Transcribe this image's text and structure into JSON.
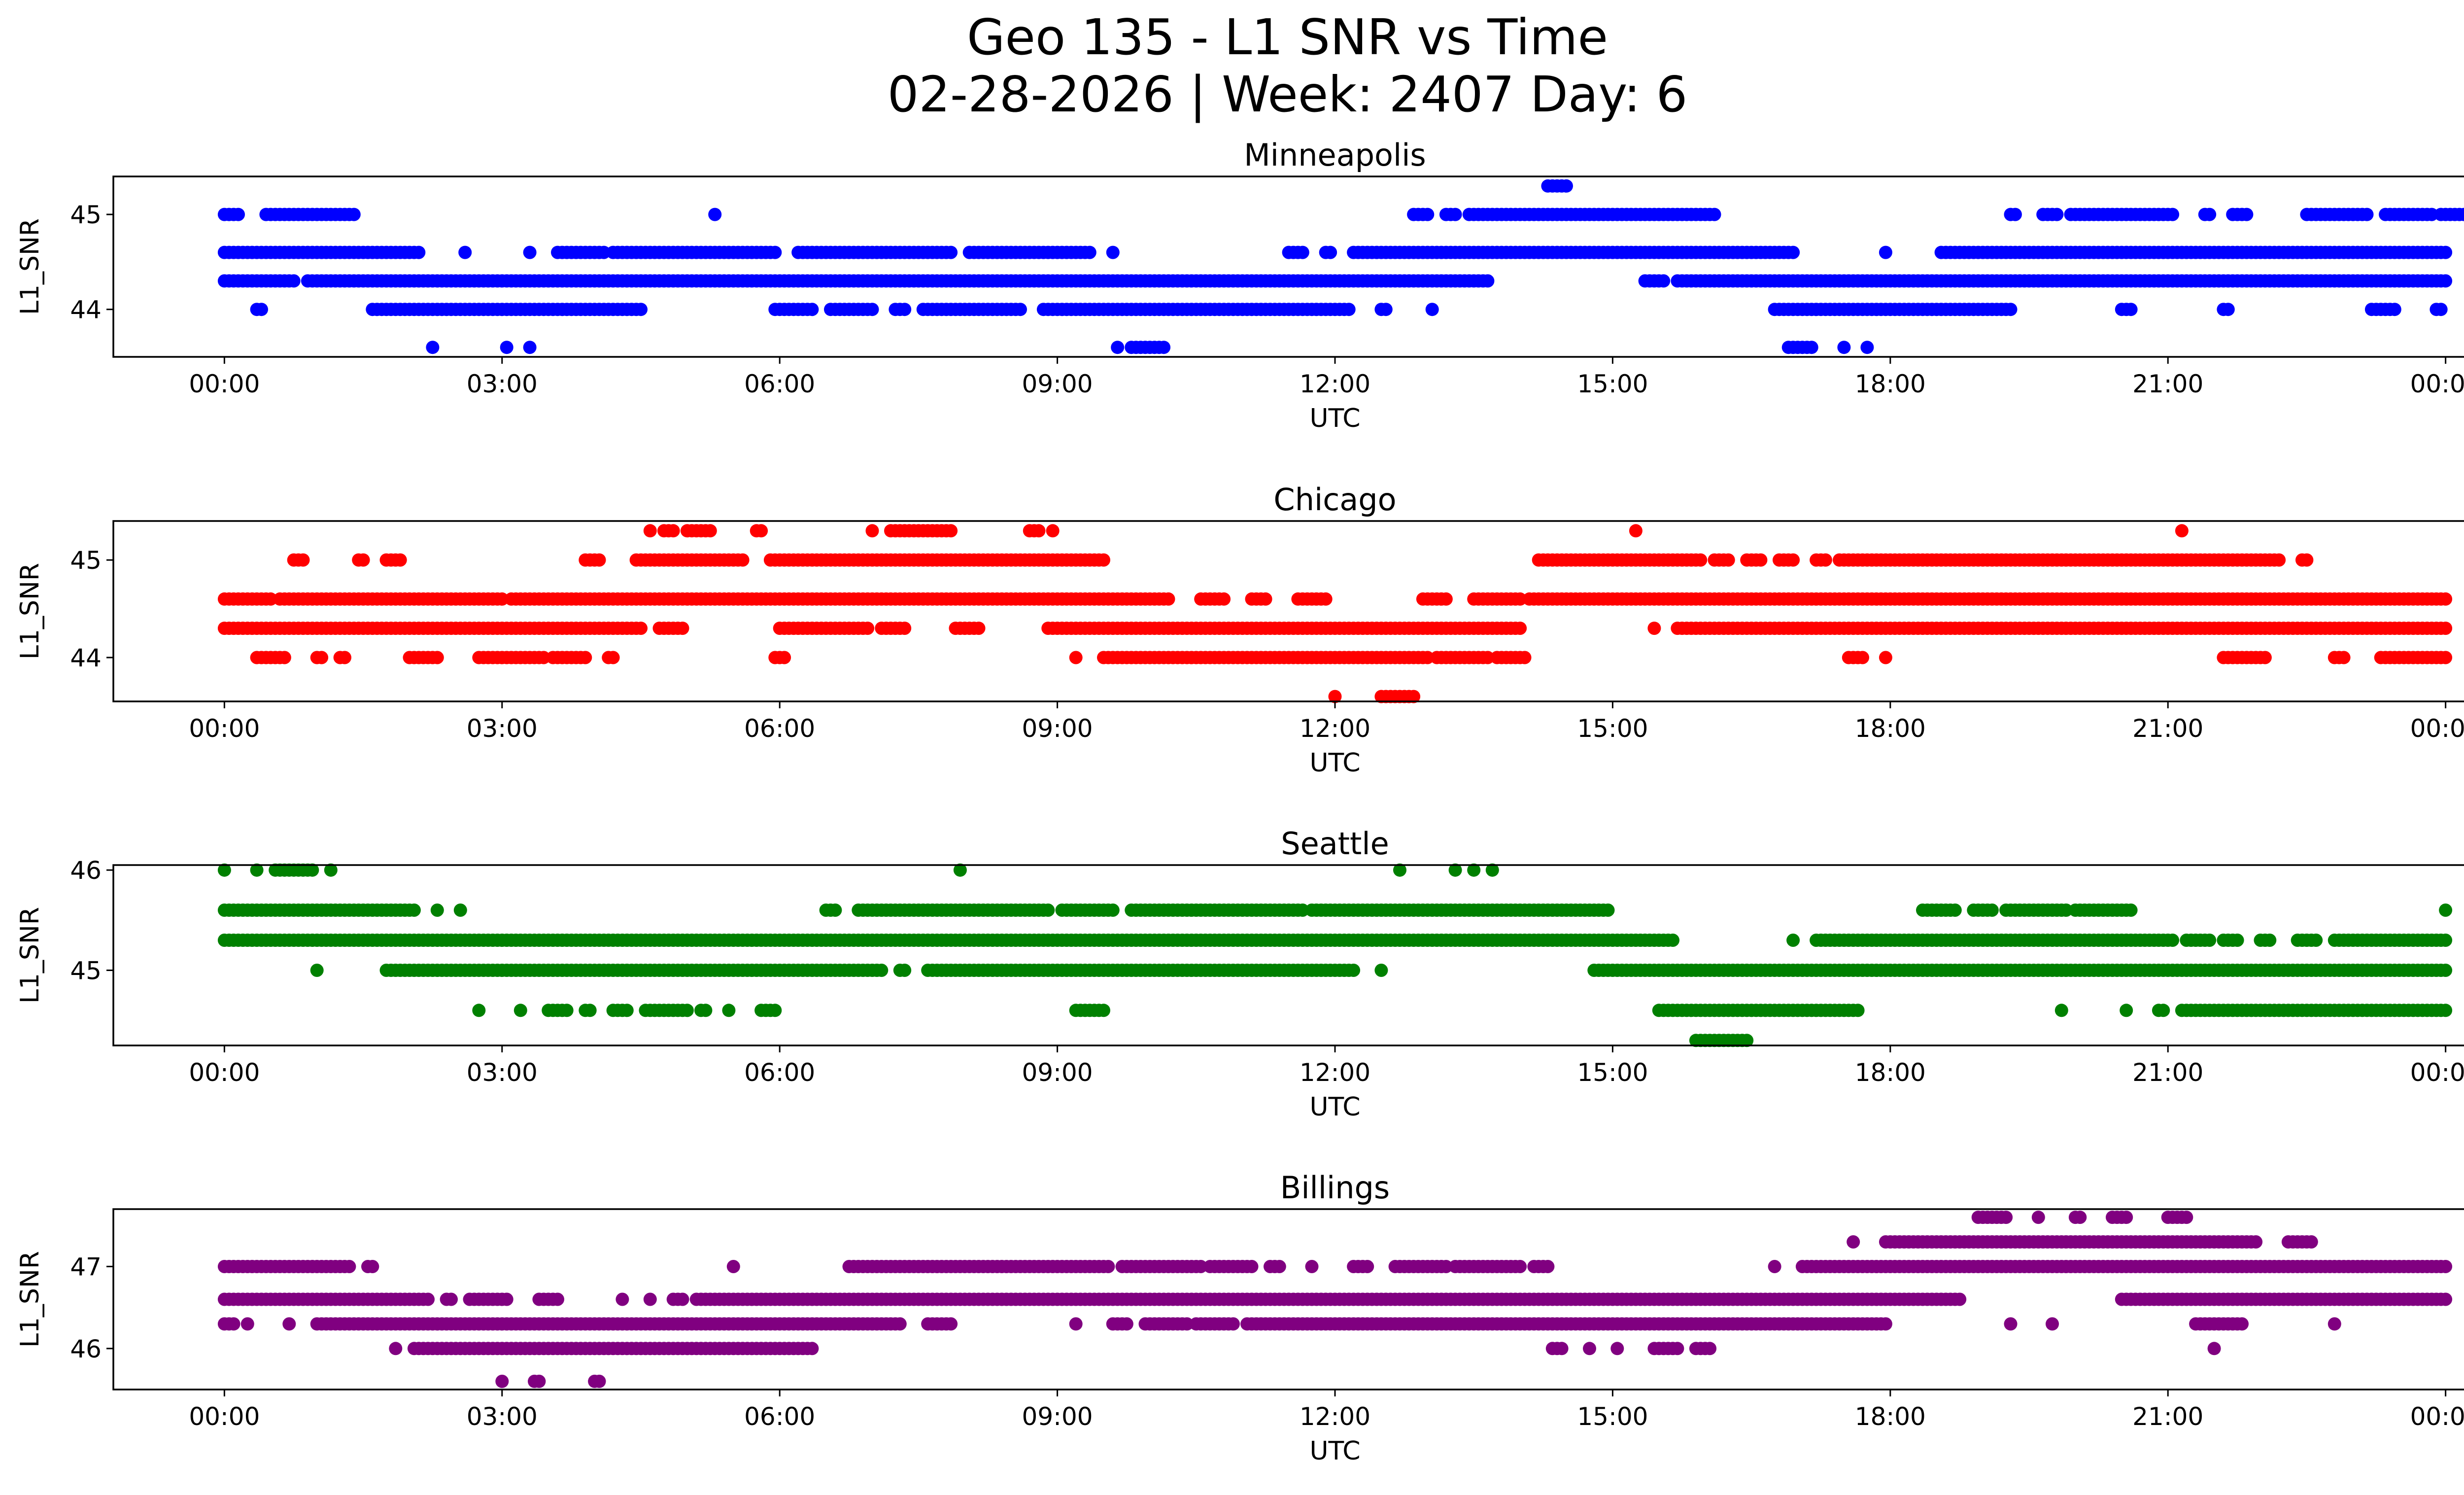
{
  "figure": {
    "title": "Geo 135 - L1 SNR vs Time\n02-28-2026 | Week: 2407 Day: 6"
  },
  "chart_data": [
    {
      "type": "scatter",
      "title": "Minneapolis",
      "xlabel": "UTC",
      "ylabel": "L1_SNR",
      "color": "#0000ff",
      "x_ticks": [
        "00:00",
        "03:00",
        "06:00",
        "09:00",
        "12:00",
        "15:00",
        "18:00",
        "21:00",
        "00:00"
      ],
      "xlim": [
        -1.2,
        25.2
      ],
      "y_ticks": [
        44,
        45
      ],
      "ylim": [
        43.5,
        45.4
      ],
      "levels": [
        {
          "y": 45.3,
          "runs": [
            [
              14.3,
              14.5
            ]
          ]
        },
        {
          "y": 45.0,
          "runs": [
            [
              0.0,
              0.15
            ],
            [
              0.45,
              1.4
            ],
            [
              5.3,
              5.3
            ],
            [
              12.85,
              13.0
            ],
            [
              13.2,
              13.3
            ],
            [
              13.45,
              16.1
            ],
            [
              19.3,
              19.35
            ],
            [
              19.65,
              19.8
            ],
            [
              19.95,
              21.05
            ],
            [
              21.4,
              21.45
            ],
            [
              21.7,
              21.85
            ],
            [
              22.5,
              23.15
            ],
            [
              23.35,
              23.85
            ],
            [
              23.95,
              24.4
            ]
          ]
        },
        {
          "y": 44.6,
          "runs": [
            [
              0.0,
              2.1
            ],
            [
              2.6,
              2.6
            ],
            [
              3.3,
              3.3
            ],
            [
              3.6,
              4.1
            ],
            [
              4.2,
              5.95
            ],
            [
              6.2,
              7.85
            ],
            [
              8.05,
              9.35
            ],
            [
              9.6,
              9.6
            ],
            [
              11.5,
              11.65
            ],
            [
              11.9,
              11.95
            ],
            [
              12.2,
              16.95
            ],
            [
              17.95,
              17.95
            ],
            [
              18.55,
              24.0
            ]
          ]
        },
        {
          "y": 44.3,
          "runs": [
            [
              0.0,
              0.75
            ],
            [
              0.9,
              13.65
            ],
            [
              15.35,
              15.55
            ],
            [
              15.7,
              24.0
            ]
          ]
        },
        {
          "y": 44.0,
          "runs": [
            [
              0.35,
              0.4
            ],
            [
              1.6,
              4.5
            ],
            [
              5.95,
              6.35
            ],
            [
              6.55,
              7.0
            ],
            [
              7.25,
              7.35
            ],
            [
              7.55,
              8.6
            ],
            [
              8.85,
              12.15
            ],
            [
              12.5,
              12.55
            ],
            [
              13.05,
              13.05
            ],
            [
              16.75,
              19.3
            ],
            [
              20.5,
              20.6
            ],
            [
              21.6,
              21.65
            ],
            [
              23.2,
              23.45
            ],
            [
              23.9,
              23.95
            ]
          ]
        },
        {
          "y": 43.6,
          "runs": [
            [
              2.25,
              2.25
            ],
            [
              3.05,
              3.05
            ],
            [
              3.3,
              3.3
            ],
            [
              9.65,
              9.65
            ],
            [
              9.8,
              10.15
            ],
            [
              16.9,
              17.15
            ],
            [
              17.5,
              17.5
            ],
            [
              17.75,
              17.75
            ]
          ]
        }
      ]
    },
    {
      "type": "scatter",
      "title": "Chicago",
      "xlabel": "UTC",
      "ylabel": "L1_SNR",
      "color": "#ff0000",
      "x_ticks": [
        "00:00",
        "03:00",
        "06:00",
        "09:00",
        "12:00",
        "15:00",
        "18:00",
        "21:00",
        "00:00"
      ],
      "xlim": [
        -1.2,
        25.2
      ],
      "y_ticks": [
        44,
        45
      ],
      "ylim": [
        43.55,
        45.4
      ],
      "levels": [
        {
          "y": 45.3,
          "runs": [
            [
              4.6,
              4.6
            ],
            [
              4.75,
              4.85
            ],
            [
              5.0,
              5.25
            ],
            [
              5.75,
              5.8
            ],
            [
              7.0,
              7.0
            ],
            [
              7.2,
              7.85
            ],
            [
              8.7,
              8.8
            ],
            [
              8.95,
              8.95
            ],
            [
              15.25,
              15.25
            ],
            [
              21.15,
              21.15
            ]
          ]
        },
        {
          "y": 45.0,
          "runs": [
            [
              0.75,
              0.85
            ],
            [
              1.45,
              1.5
            ],
            [
              1.75,
              1.9
            ],
            [
              3.9,
              4.05
            ],
            [
              4.45,
              5.6
            ],
            [
              5.9,
              6.3
            ],
            [
              6.35,
              9.5
            ],
            [
              14.2,
              15.95
            ],
            [
              16.1,
              16.25
            ],
            [
              16.45,
              16.6
            ],
            [
              16.8,
              16.95
            ],
            [
              17.2,
              17.3
            ],
            [
              17.45,
              17.95
            ],
            [
              18.0,
              21.25
            ],
            [
              21.3,
              22.2
            ],
            [
              22.45,
              22.5
            ]
          ]
        },
        {
          "y": 44.6,
          "runs": [
            [
              0.0,
              0.5
            ],
            [
              0.6,
              3.0
            ],
            [
              3.1,
              10.2
            ],
            [
              10.55,
              10.8
            ],
            [
              11.1,
              11.25
            ],
            [
              11.6,
              11.9
            ],
            [
              12.95,
              13.2
            ],
            [
              13.5,
              14.0
            ],
            [
              14.1,
              24.0
            ]
          ]
        },
        {
          "y": 44.3,
          "runs": [
            [
              0.0,
              4.5
            ],
            [
              4.7,
              4.95
            ],
            [
              6.0,
              6.95
            ],
            [
              7.1,
              7.35
            ],
            [
              7.9,
              8.15
            ],
            [
              8.9,
              14.0
            ],
            [
              15.45,
              15.45
            ],
            [
              15.7,
              24.0
            ]
          ]
        },
        {
          "y": 44.0,
          "runs": [
            [
              0.35,
              0.65
            ],
            [
              1.0,
              1.05
            ],
            [
              1.25,
              1.3
            ],
            [
              2.0,
              2.3
            ],
            [
              2.75,
              3.45
            ],
            [
              3.55,
              3.9
            ],
            [
              4.15,
              4.2
            ],
            [
              5.95,
              6.05
            ],
            [
              9.2,
              9.2
            ],
            [
              9.5,
              13.0
            ],
            [
              13.1,
              13.65
            ],
            [
              13.75,
              14.05
            ],
            [
              17.55,
              17.7
            ],
            [
              17.95,
              17.95
            ],
            [
              21.6,
              22.05
            ],
            [
              22.8,
              22.9
            ],
            [
              23.3,
              24.0
            ]
          ]
        },
        {
          "y": 43.6,
          "runs": [
            [
              12.0,
              12.0
            ],
            [
              12.5,
              12.85
            ]
          ]
        }
      ]
    },
    {
      "type": "scatter",
      "title": "Seattle",
      "xlabel": "UTC",
      "ylabel": "L1_SNR",
      "color": "#008000",
      "x_ticks": [
        "00:00",
        "03:00",
        "06:00",
        "09:00",
        "12:00",
        "15:00",
        "18:00",
        "21:00",
        "00:00"
      ],
      "xlim": [
        -1.2,
        25.2
      ],
      "y_ticks": [
        45,
        46
      ],
      "ylim": [
        44.25,
        46.05
      ],
      "levels": [
        {
          "y": 46.0,
          "runs": [
            [
              0.0,
              0.0
            ],
            [
              0.35,
              0.35
            ],
            [
              0.55,
              0.95
            ],
            [
              1.15,
              1.15
            ],
            [
              7.95,
              7.95
            ],
            [
              12.7,
              12.7
            ],
            [
              13.3,
              13.3
            ],
            [
              13.5,
              13.5
            ],
            [
              13.7,
              13.7
            ]
          ]
        },
        {
          "y": 45.6,
          "runs": [
            [
              0.0,
              2.05
            ],
            [
              2.3,
              2.3
            ],
            [
              2.55,
              2.55
            ],
            [
              6.5,
              6.6
            ],
            [
              6.85,
              8.9
            ],
            [
              9.05,
              9.6
            ],
            [
              9.8,
              10.5
            ],
            [
              10.55,
              11.65
            ],
            [
              11.75,
              14.95
            ],
            [
              18.35,
              18.7
            ],
            [
              18.9,
              19.1
            ],
            [
              19.25,
              19.9
            ],
            [
              20.0,
              20.6
            ],
            [
              24.0,
              24.0
            ]
          ]
        },
        {
          "y": 45.3,
          "runs": [
            [
              0.0,
              15.65
            ],
            [
              16.95,
              16.95
            ],
            [
              17.2,
              21.05
            ],
            [
              21.2,
              21.45
            ],
            [
              21.6,
              21.75
            ],
            [
              22.0,
              22.1
            ],
            [
              22.4,
              22.6
            ],
            [
              22.8,
              24.0
            ]
          ]
        },
        {
          "y": 45.0,
          "runs": [
            [
              1.0,
              1.0
            ],
            [
              1.75,
              7.1
            ],
            [
              7.3,
              7.35
            ],
            [
              7.6,
              12.2
            ],
            [
              12.5,
              12.5
            ],
            [
              14.8,
              24.0
            ]
          ]
        },
        {
          "y": 44.6,
          "runs": [
            [
              2.75,
              2.75
            ],
            [
              3.2,
              3.2
            ],
            [
              3.5,
              3.7
            ],
            [
              3.9,
              3.95
            ],
            [
              4.2,
              4.35
            ],
            [
              4.55,
              5.0
            ],
            [
              5.15,
              5.2
            ],
            [
              5.45,
              5.45
            ],
            [
              5.8,
              5.95
            ],
            [
              9.2,
              9.5
            ],
            [
              15.5,
              17.65
            ],
            [
              19.85,
              19.85
            ],
            [
              20.55,
              20.55
            ],
            [
              20.9,
              20.95
            ],
            [
              21.15,
              24.0
            ]
          ]
        },
        {
          "y": 44.3,
          "runs": [
            [
              15.9,
              16.45
            ]
          ]
        }
      ]
    },
    {
      "type": "scatter",
      "title": "Billings",
      "xlabel": "UTC",
      "ylabel": "L1_SNR",
      "color": "#800080",
      "x_ticks": [
        "00:00",
        "03:00",
        "06:00",
        "09:00",
        "12:00",
        "15:00",
        "18:00",
        "21:00",
        "00:00"
      ],
      "xlim": [
        -1.2,
        25.2
      ],
      "y_ticks": [
        46,
        47
      ],
      "ylim": [
        45.5,
        47.7
      ],
      "levels": [
        {
          "y": 47.6,
          "runs": [
            [
              18.95,
              19.25
            ],
            [
              19.6,
              19.6
            ],
            [
              20.0,
              20.05
            ],
            [
              20.4,
              20.55
            ],
            [
              21.0,
              21.2
            ]
          ]
        },
        {
          "y": 47.3,
          "runs": [
            [
              17.6,
              17.6
            ],
            [
              17.95,
              21.95
            ],
            [
              22.3,
              22.55
            ]
          ]
        },
        {
          "y": 47.0,
          "runs": [
            [
              0.0,
              1.35
            ],
            [
              1.55,
              1.6
            ],
            [
              5.5,
              5.5
            ],
            [
              6.75,
              9.55
            ],
            [
              9.7,
              10.55
            ],
            [
              10.65,
              11.1
            ],
            [
              11.3,
              11.4
            ],
            [
              11.75,
              11.75
            ],
            [
              12.2,
              12.35
            ],
            [
              12.65,
              13.2
            ],
            [
              13.3,
              14.0
            ],
            [
              14.15,
              14.3
            ],
            [
              16.75,
              16.75
            ],
            [
              17.05,
              24.0
            ]
          ]
        },
        {
          "y": 46.6,
          "runs": [
            [
              0.0,
              2.2
            ],
            [
              2.4,
              2.45
            ],
            [
              2.65,
              3.05
            ],
            [
              3.4,
              3.6
            ],
            [
              4.3,
              4.3
            ],
            [
              4.6,
              4.6
            ],
            [
              4.85,
              4.95
            ],
            [
              5.1,
              18.75
            ],
            [
              20.5,
              24.0
            ]
          ]
        },
        {
          "y": 46.3,
          "runs": [
            [
              0.0,
              0.1
            ],
            [
              0.25,
              0.25
            ],
            [
              0.7,
              0.7
            ],
            [
              1.0,
              7.3
            ],
            [
              7.6,
              7.85
            ],
            [
              9.2,
              9.2
            ],
            [
              9.6,
              9.75
            ],
            [
              9.95,
              10.4
            ],
            [
              10.5,
              10.9
            ],
            [
              11.05,
              17.95
            ],
            [
              19.3,
              19.3
            ],
            [
              19.75,
              19.75
            ],
            [
              21.3,
              21.8
            ],
            [
              22.8,
              22.8
            ]
          ]
        },
        {
          "y": 46.0,
          "runs": [
            [
              1.85,
              1.85
            ],
            [
              2.05,
              6.35
            ],
            [
              14.35,
              14.45
            ],
            [
              14.75,
              14.75
            ],
            [
              15.05,
              15.05
            ],
            [
              15.45,
              15.7
            ],
            [
              15.9,
              16.05
            ],
            [
              21.5,
              21.5
            ]
          ]
        },
        {
          "y": 45.6,
          "runs": [
            [
              3.0,
              3.0
            ],
            [
              3.35,
              3.4
            ],
            [
              4.0,
              4.05
            ]
          ]
        }
      ]
    }
  ]
}
